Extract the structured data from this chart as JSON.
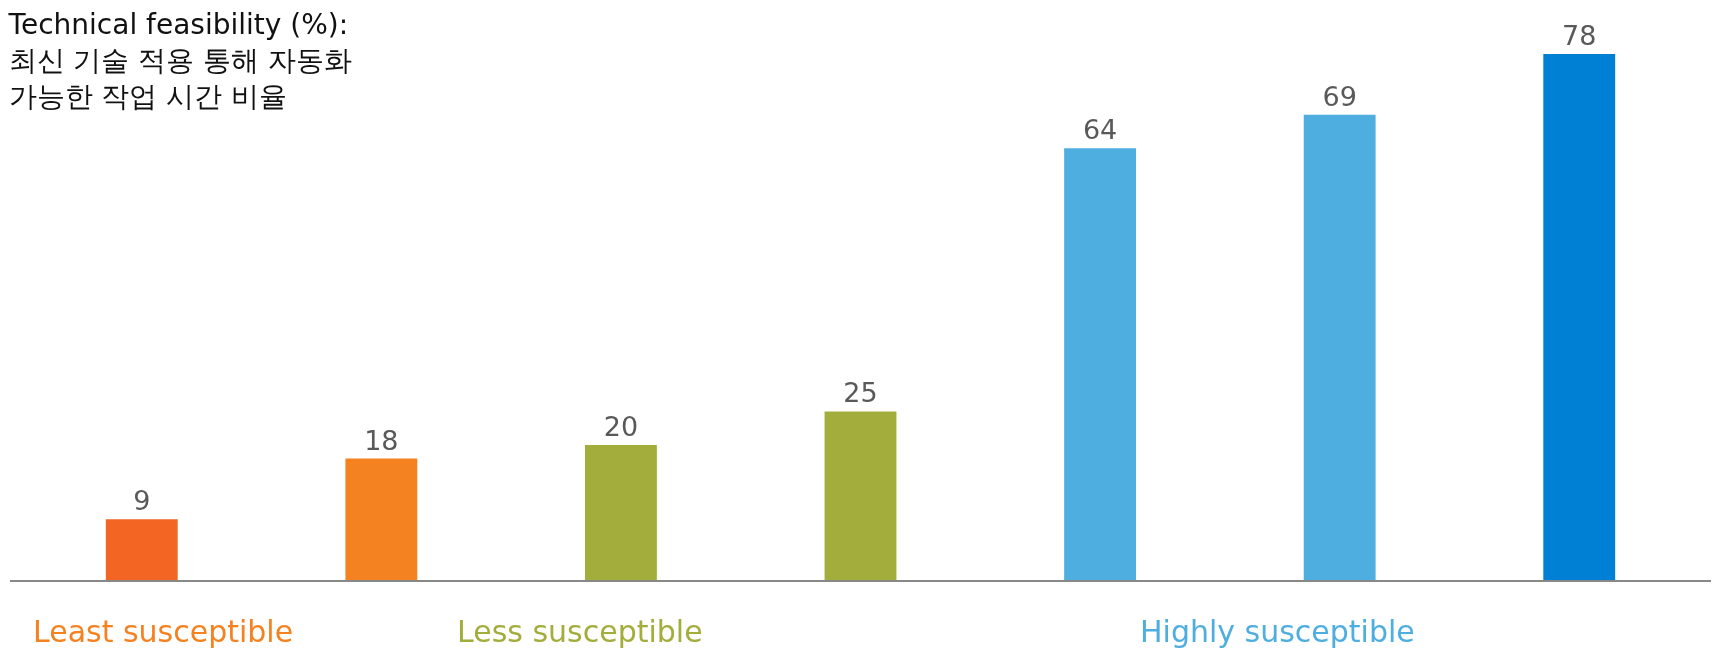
{
  "chart_data": {
    "type": "bar",
    "title": "Technical feasibility (%):\n최신 기술 적용 통해 자동화\n가능한 작업 시간 비율",
    "categories": [
      null,
      null,
      null,
      null,
      null,
      null,
      null
    ],
    "values": [
      9,
      18,
      20,
      25,
      64,
      69,
      78
    ],
    "colors": [
      "#f26522",
      "#f58220",
      "#a3ad3b",
      "#a3ad3b",
      "#4faee0",
      "#4faee0",
      "#0080d5"
    ],
    "ylim": [
      0,
      86
    ],
    "data_labels": true,
    "annotations": [
      "Least susceptible",
      "Less susceptible",
      "Highly susceptible"
    ]
  }
}
